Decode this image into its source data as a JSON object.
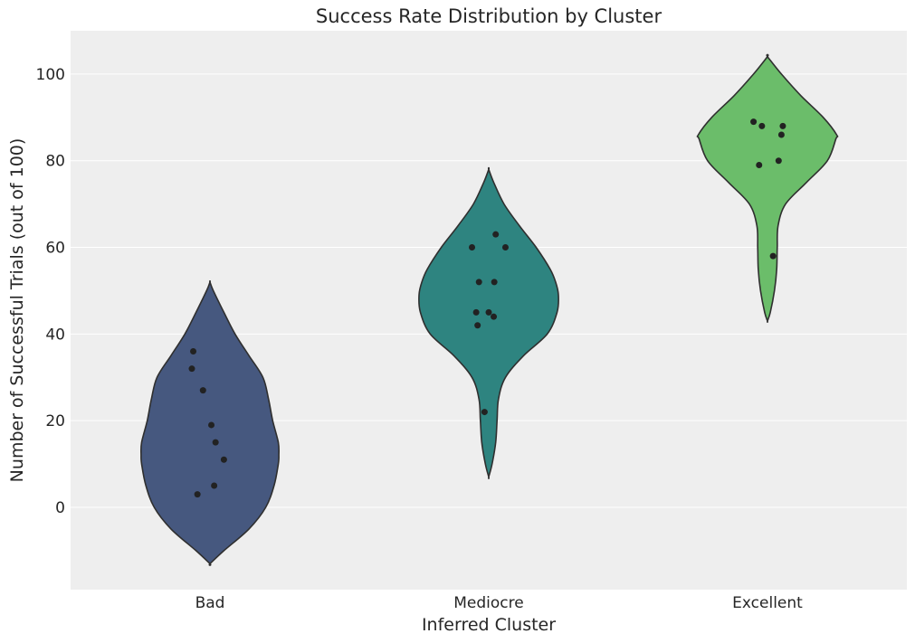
{
  "chart_data": {
    "type": "violin",
    "title": "Success Rate Distribution by Cluster",
    "xlabel": "Inferred Cluster",
    "ylabel": "Number of Successful Trials (out of 100)",
    "ylim": [
      -19,
      110
    ],
    "yticks": [
      0,
      20,
      40,
      60,
      80,
      100
    ],
    "grid": "horizontal",
    "background": "#eeeeee",
    "categories": [
      "Bad",
      "Mediocre",
      "Excellent"
    ],
    "series": [
      {
        "category": "Bad",
        "color": "#46587f",
        "points": [
          [
            -0.06,
            36
          ],
          [
            -0.065,
            32
          ],
          [
            -0.025,
            27
          ],
          [
            0.005,
            19
          ],
          [
            0.02,
            15
          ],
          [
            0.05,
            11
          ],
          [
            0.015,
            5
          ],
          [
            -0.045,
            3
          ]
        ],
        "violin": [
          [
            -13,
            0.0
          ],
          [
            -10,
            0.05
          ],
          [
            -5,
            0.14
          ],
          [
            0,
            0.2
          ],
          [
            5,
            0.23
          ],
          [
            10,
            0.245
          ],
          [
            12,
            0.247
          ],
          [
            15,
            0.245
          ],
          [
            20,
            0.225
          ],
          [
            25,
            0.21
          ],
          [
            30,
            0.19
          ],
          [
            35,
            0.14
          ],
          [
            40,
            0.09
          ],
          [
            45,
            0.05
          ],
          [
            50,
            0.012
          ],
          [
            52,
            0.0
          ]
        ]
      },
      {
        "category": "Mediocre",
        "color": "#2e8480",
        "points": [
          [
            -0.06,
            60
          ],
          [
            0.025,
            63
          ],
          [
            0.06,
            60
          ],
          [
            -0.035,
            52
          ],
          [
            0.02,
            52
          ],
          [
            -0.045,
            45
          ],
          [
            0.0,
            45
          ],
          [
            -0.04,
            42
          ],
          [
            0.018,
            44
          ],
          [
            -0.015,
            22
          ]
        ],
        "violin": [
          [
            7,
            0.0
          ],
          [
            10,
            0.012
          ],
          [
            15,
            0.025
          ],
          [
            20,
            0.03
          ],
          [
            25,
            0.035
          ],
          [
            30,
            0.06
          ],
          [
            35,
            0.125
          ],
          [
            40,
            0.21
          ],
          [
            45,
            0.245
          ],
          [
            49,
            0.25
          ],
          [
            52,
            0.24
          ],
          [
            55,
            0.22
          ],
          [
            60,
            0.17
          ],
          [
            65,
            0.11
          ],
          [
            70,
            0.055
          ],
          [
            75,
            0.018
          ],
          [
            78,
            0.0
          ]
        ]
      },
      {
        "category": "Excellent",
        "color": "#6bbd6a",
        "points": [
          [
            -0.05,
            89
          ],
          [
            -0.02,
            88
          ],
          [
            0.055,
            88
          ],
          [
            0.05,
            86
          ],
          [
            -0.03,
            79
          ],
          [
            0.04,
            80
          ],
          [
            0.02,
            58
          ]
        ],
        "violin": [
          [
            43,
            0.0
          ],
          [
            45,
            0.01
          ],
          [
            50,
            0.025
          ],
          [
            55,
            0.033
          ],
          [
            60,
            0.035
          ],
          [
            65,
            0.038
          ],
          [
            70,
            0.065
          ],
          [
            75,
            0.14
          ],
          [
            80,
            0.215
          ],
          [
            85,
            0.245
          ],
          [
            86,
            0.248
          ],
          [
            90,
            0.2
          ],
          [
            95,
            0.12
          ],
          [
            100,
            0.05
          ],
          [
            104,
            0.0
          ]
        ]
      }
    ]
  }
}
